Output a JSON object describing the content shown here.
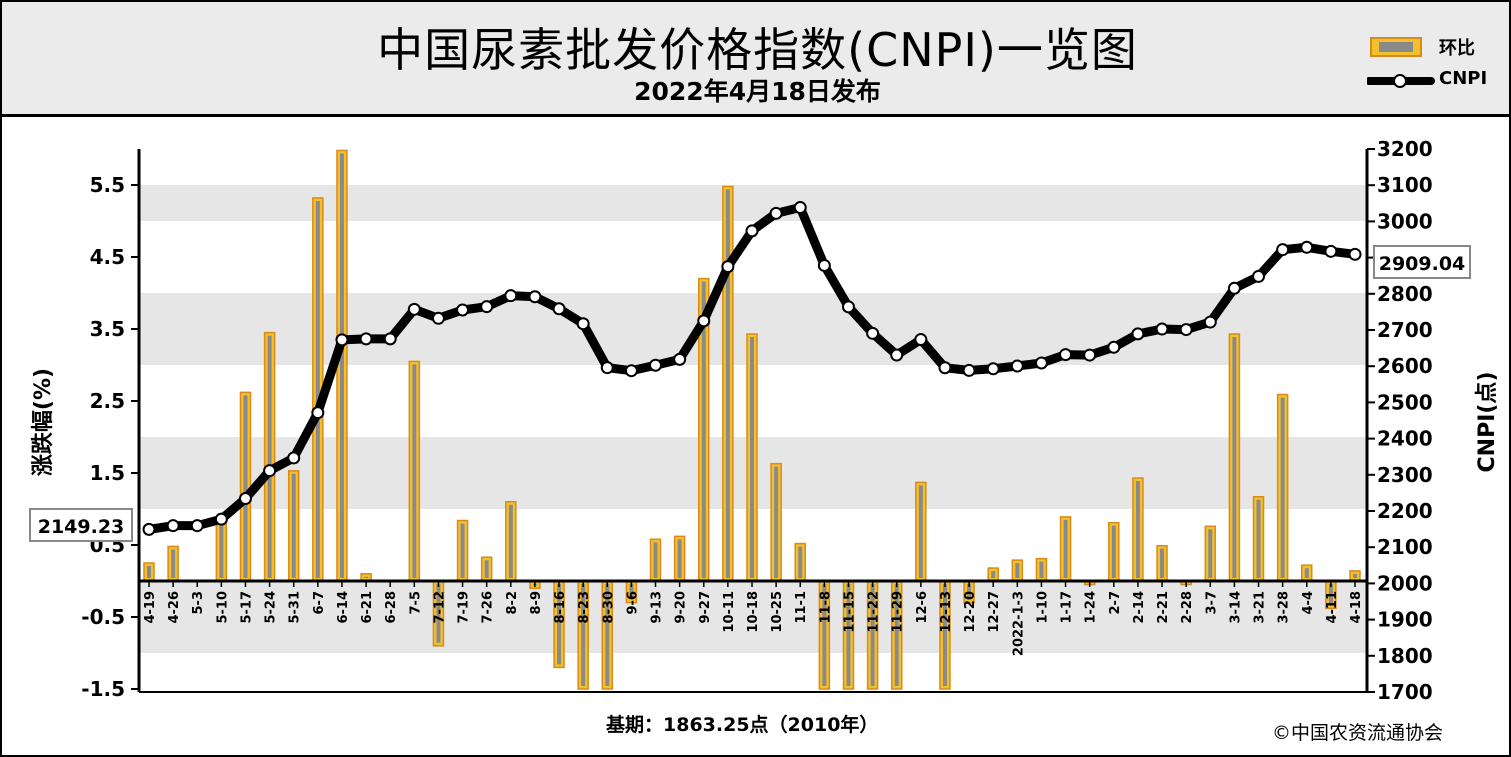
{
  "header": {
    "title": "中国尿素批发价格指数(CNPI)一览图",
    "subtitle": "2022年4月18日发布"
  },
  "legend": {
    "bar_label": "环比",
    "line_label": "CNPI"
  },
  "footer": {
    "base": "基期：1863.25点（2010年）",
    "copyright": "©中国农资流通协会"
  },
  "value_boxes": {
    "start": "2149.23",
    "end": "2909.04"
  },
  "colors": {
    "bar_fill": "#f2c12e",
    "bar_core": "#8a8a8a",
    "bar_border": "#d98a1a",
    "line": "#000000",
    "grid_band": "#e6e6e6",
    "header_bg": "#ebebeb"
  },
  "chart_data": {
    "type": "bar+line",
    "left_axis": {
      "label": "涨跌幅(%)",
      "ticks": [
        "5.5",
        "4.5",
        "3.5",
        "2.5",
        "1.5",
        "0.5",
        "-0.5",
        "-1.5"
      ],
      "range": [
        -1.5,
        6.0
      ]
    },
    "right_axis": {
      "label": "CNPI(点)",
      "ticks": [
        "3200",
        "3100",
        "3000",
        "2900",
        "2800",
        "2700",
        "2600",
        "2500",
        "2400",
        "2300",
        "2200",
        "2100",
        "2000",
        "1900",
        "1800",
        "1700"
      ],
      "range": [
        1700,
        3200
      ]
    },
    "categories": [
      "4-19",
      "4-26",
      "5-3",
      "5-10",
      "5-17",
      "5-24",
      "5-31",
      "6-7",
      "6-14",
      "6-21",
      "6-28",
      "7-5",
      "7-12",
      "7-19",
      "7-26",
      "8-2",
      "8-9",
      "8-16",
      "8-23",
      "8-30",
      "9-6",
      "9-13",
      "9-20",
      "9-27",
      "10-11",
      "10-18",
      "10-25",
      "11-1",
      "11-8",
      "11-15",
      "11-22",
      "11-29",
      "12-6",
      "12-13",
      "12-20",
      "12-27",
      "2022-1-3",
      "1-10",
      "1-17",
      "1-24",
      "2-7",
      "2-14",
      "2-21",
      "2-28",
      "3-7",
      "3-14",
      "3-21",
      "3-28",
      "4-4",
      "4-11",
      "4-18"
    ],
    "series": [
      {
        "name": "环比",
        "kind": "bar",
        "values": [
          0.25,
          0.48,
          0.0,
          0.82,
          2.62,
          3.45,
          1.53,
          5.32,
          5.98,
          0.1,
          0.0,
          3.05,
          -0.9,
          0.84,
          0.33,
          1.1,
          -0.1,
          -1.2,
          -1.5,
          -1.5,
          -0.3,
          0.58,
          0.62,
          4.2,
          5.48,
          3.43,
          1.63,
          0.52,
          -1.5,
          -1.5,
          -1.5,
          -1.5,
          1.37,
          -1.5,
          -0.3,
          0.18,
          0.29,
          0.31,
          0.89,
          -0.05,
          0.81,
          1.43,
          0.49,
          -0.05,
          0.76,
          3.43,
          1.17,
          2.59,
          0.22,
          -0.38,
          0.14
        ]
      },
      {
        "name": "CNPI",
        "kind": "line",
        "values": [
          2149.23,
          2159.5,
          2159.5,
          2177.4,
          2234.4,
          2311.4,
          2346.6,
          2471.7,
          2672.8,
          2675.5,
          2675.5,
          2757.1,
          2732.3,
          2755.3,
          2764.4,
          2794.8,
          2791.9,
          2758.7,
          2717.4,
          2596.0,
          2587.6,
          2602.7,
          2618.9,
          2725.3,
          2875.1,
          2973.9,
          3022.3,
          3038.3,
          2878.3,
          2764.0,
          2690.8,
          2630.9,
          2673.6,
          2595.8,
          2588.4,
          2592.9,
          2600.5,
          2608.9,
          2632.0,
          2630.7,
          2652.2,
          2689.3,
          2702.6,
          2701.2,
          2721.9,
          2815.2,
          2848.0,
          2921.9,
          2928.5,
          2917.3,
          2909.04
        ]
      }
    ]
  }
}
